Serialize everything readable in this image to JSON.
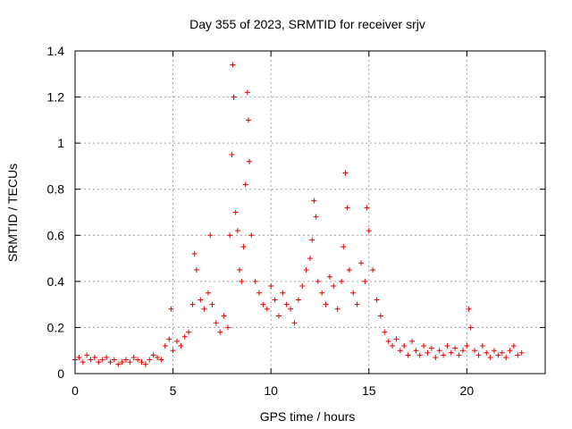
{
  "chart_data": {
    "type": "scatter",
    "title": "Day 355 of 2023, SRMTID for receiver srjv",
    "xlabel": "GPS time / hours",
    "ylabel": "SRMTID / TECUs",
    "xlim": [
      0,
      24
    ],
    "ylim": [
      0,
      1.4
    ],
    "x_ticks": [
      0,
      5,
      10,
      15,
      20
    ],
    "x_tick_labels": [
      "0",
      "5",
      "10",
      "15",
      "20"
    ],
    "y_ticks": [
      0,
      0.2,
      0.4,
      0.6,
      0.8,
      1.0,
      1.2,
      1.4
    ],
    "y_tick_labels": [
      "0",
      "0.2",
      "0.4",
      "0.6",
      "0.8",
      "1",
      "1.2",
      "1.4"
    ],
    "grid": true,
    "marker": "plus",
    "colors": {
      "series": "#e00000",
      "grid": "#a0a0a0",
      "axes": "#000000"
    },
    "series": [
      {
        "name": "SRMTID",
        "x": [
          0.0,
          0.2,
          0.4,
          0.6,
          0.8,
          1.0,
          1.2,
          1.4,
          1.6,
          1.8,
          2.0,
          2.2,
          2.4,
          2.6,
          2.8,
          3.0,
          3.2,
          3.4,
          3.6,
          3.8,
          4.0,
          4.2,
          4.4,
          4.6,
          4.8,
          4.9,
          5.0,
          5.2,
          5.4,
          5.6,
          5.8,
          6.0,
          6.1,
          6.2,
          6.4,
          6.6,
          6.8,
          6.9,
          7.0,
          7.2,
          7.4,
          7.6,
          7.8,
          7.9,
          8.0,
          8.05,
          8.1,
          8.2,
          8.3,
          8.4,
          8.5,
          8.6,
          8.7,
          8.8,
          8.85,
          8.9,
          9.0,
          9.2,
          9.4,
          9.6,
          9.8,
          10.0,
          10.2,
          10.4,
          10.6,
          10.8,
          11.0,
          11.2,
          11.4,
          11.6,
          11.8,
          12.0,
          12.1,
          12.2,
          12.3,
          12.4,
          12.6,
          12.8,
          13.0,
          13.2,
          13.4,
          13.6,
          13.7,
          13.8,
          13.9,
          14.0,
          14.2,
          14.4,
          14.6,
          14.8,
          14.9,
          15.0,
          15.2,
          15.4,
          15.6,
          15.8,
          16.0,
          16.2,
          16.4,
          16.6,
          16.8,
          17.0,
          17.2,
          17.4,
          17.6,
          17.8,
          18.0,
          18.2,
          18.4,
          18.6,
          18.8,
          19.0,
          19.2,
          19.4,
          19.6,
          19.8,
          20.0,
          20.1,
          20.2,
          20.4,
          20.6,
          20.8,
          21.0,
          21.2,
          21.4,
          21.6,
          21.8,
          22.0,
          22.2,
          22.4,
          22.6,
          22.8
        ],
        "y": [
          0.06,
          0.07,
          0.05,
          0.08,
          0.06,
          0.07,
          0.05,
          0.06,
          0.07,
          0.05,
          0.06,
          0.04,
          0.05,
          0.06,
          0.05,
          0.07,
          0.06,
          0.05,
          0.04,
          0.06,
          0.08,
          0.07,
          0.06,
          0.12,
          0.15,
          0.28,
          0.1,
          0.14,
          0.12,
          0.16,
          0.18,
          0.3,
          0.52,
          0.45,
          0.32,
          0.28,
          0.35,
          0.6,
          0.3,
          0.22,
          0.18,
          0.25,
          0.2,
          0.6,
          0.95,
          1.34,
          1.2,
          0.7,
          0.62,
          0.45,
          0.4,
          0.55,
          0.82,
          1.22,
          1.1,
          0.92,
          0.6,
          0.4,
          0.35,
          0.3,
          0.28,
          0.38,
          0.32,
          0.25,
          0.35,
          0.3,
          0.28,
          0.22,
          0.32,
          0.38,
          0.45,
          0.5,
          0.58,
          0.75,
          0.68,
          0.4,
          0.35,
          0.3,
          0.42,
          0.38,
          0.28,
          0.4,
          0.55,
          0.87,
          0.72,
          0.45,
          0.35,
          0.3,
          0.48,
          0.4,
          0.72,
          0.62,
          0.45,
          0.32,
          0.25,
          0.18,
          0.14,
          0.12,
          0.15,
          0.1,
          0.12,
          0.08,
          0.14,
          0.1,
          0.08,
          0.12,
          0.09,
          0.11,
          0.07,
          0.1,
          0.08,
          0.12,
          0.09,
          0.11,
          0.08,
          0.1,
          0.12,
          0.28,
          0.2,
          0.1,
          0.08,
          0.12,
          0.09,
          0.07,
          0.1,
          0.08,
          0.09,
          0.07,
          0.1,
          0.12,
          0.08,
          0.09
        ]
      }
    ]
  }
}
